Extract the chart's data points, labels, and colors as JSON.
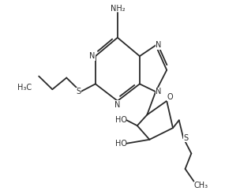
{
  "bg_color": "#ffffff",
  "line_color": "#2a2a2a",
  "figsize": [
    3.04,
    2.42
  ],
  "dpi": 100,
  "bond_lw": 1.3,
  "font_size": 7.0,
  "xlim": [
    0,
    10
  ],
  "ylim": [
    0,
    10
  ]
}
